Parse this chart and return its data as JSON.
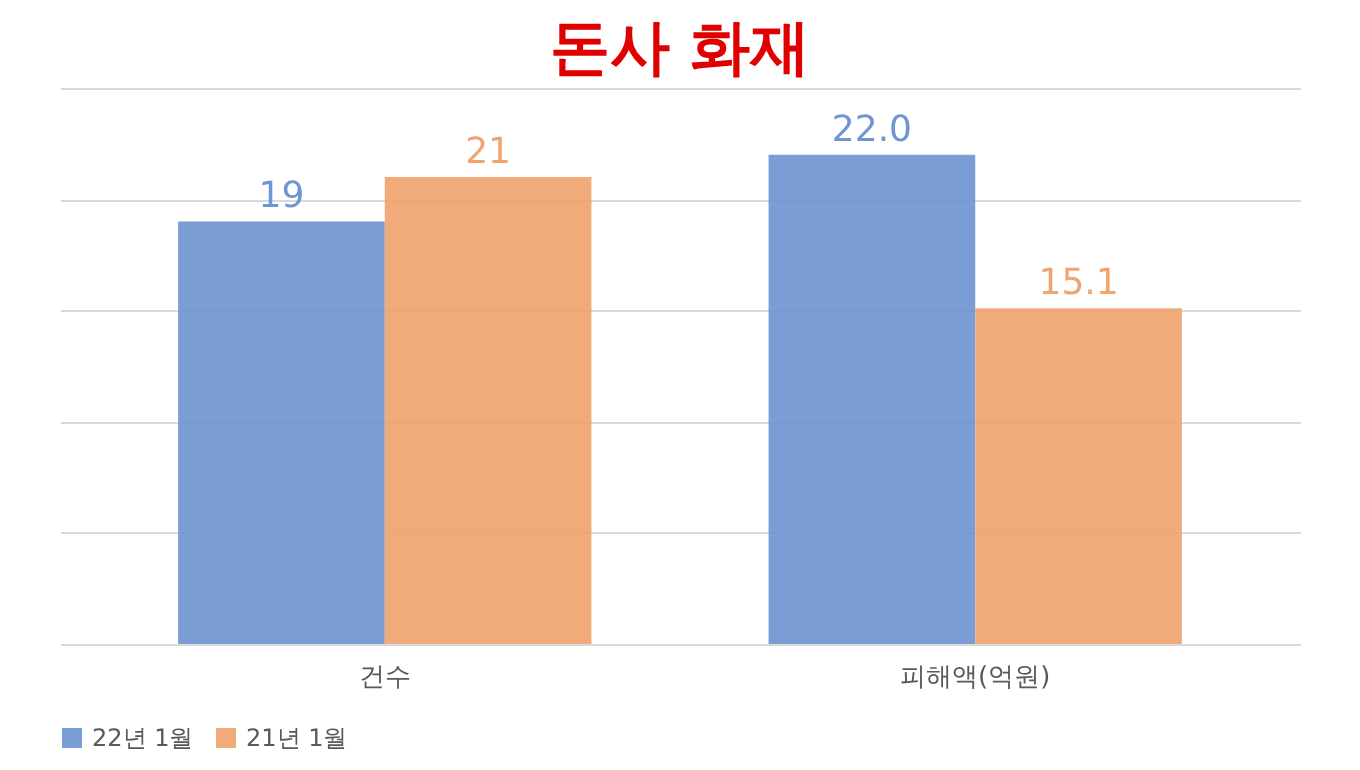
{
  "chart_data": {
    "type": "bar",
    "title": "돈사 화재",
    "categories": [
      "건수",
      "피해액(억원)"
    ],
    "series": [
      {
        "name": "22년 1월",
        "color": "#6f95d3",
        "values": [
          19,
          22.0
        ],
        "value_labels": [
          "19",
          "22.0"
        ]
      },
      {
        "name": "21년 1월",
        "color": "#f0a46f",
        "values": [
          21,
          15.1
        ],
        "value_labels": [
          "21",
          "15.1"
        ]
      }
    ],
    "ylim": [
      0,
      25
    ],
    "yticks": [
      {
        "value": 0,
        "label": null
      },
      {
        "value": 5,
        "label": null
      },
      {
        "value": 10,
        "label": null
      },
      {
        "value": 15,
        "label": null
      },
      {
        "value": 20,
        "label": null
      },
      {
        "value": 25,
        "label": null
      }
    ],
    "grid": "y",
    "tick_labels": "x",
    "legend": "bottom"
  }
}
